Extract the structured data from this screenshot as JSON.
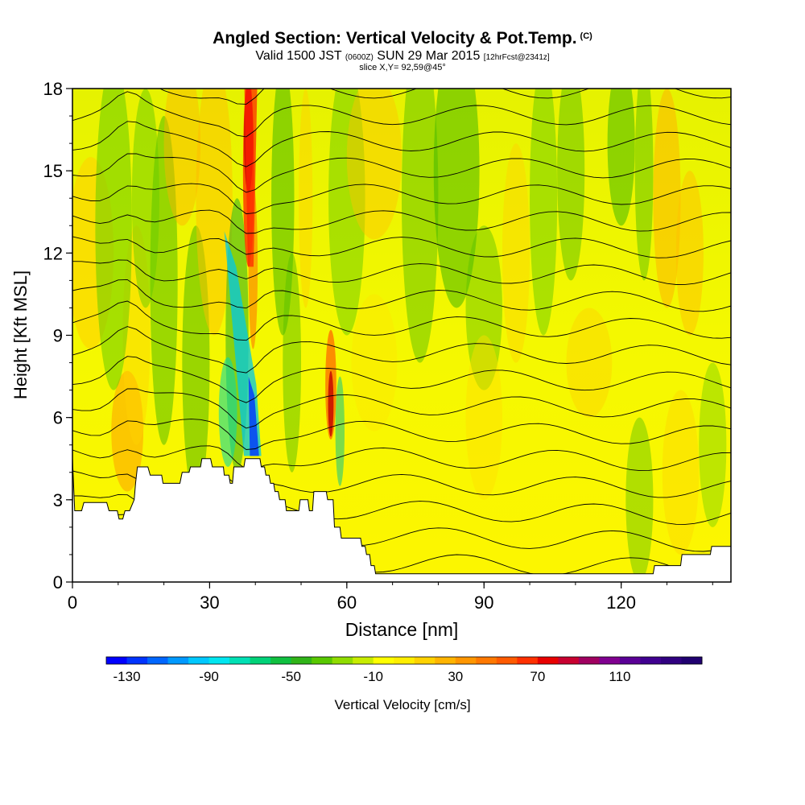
{
  "header": {
    "title": "Angled Section: Vertical Velocity & Pot.Temp.",
    "title_unit": "(C)",
    "valid_prefix": "Valid 1500 JST",
    "valid_z": "(0600Z)",
    "valid_date": "SUN 29 Mar 2015",
    "valid_fcst": "[12hrFcst@2341z]",
    "slice": "slice X,Y= 92,59@45°"
  },
  "chart_data": {
    "type": "heatmap",
    "xlabel": "Distance [nm]",
    "ylabel": "Height [Kft MSL]",
    "xlim": [
      0,
      144
    ],
    "ylim": [
      0,
      18
    ],
    "x_ticks": [
      "0",
      "30",
      "60",
      "90",
      "120"
    ],
    "x_tick_values": [
      0,
      30,
      60,
      90,
      120
    ],
    "y_ticks": [
      "0",
      "3",
      "6",
      "9",
      "12",
      "15",
      "18"
    ],
    "y_tick_values": [
      0,
      3,
      6,
      9,
      12,
      15,
      18
    ],
    "colorbar": {
      "label": "Vertical Velocity [cm/s]",
      "tick_labels": [
        "-130",
        "-90",
        "-50",
        "-10",
        "30",
        "70",
        "110"
      ],
      "min": -140,
      "max": 150,
      "step": 10,
      "colors": [
        "#0000ff",
        "#0033ff",
        "#0066ff",
        "#0099ff",
        "#00c8ff",
        "#00e6f0",
        "#00e0b4",
        "#00d278",
        "#10c040",
        "#30b418",
        "#58c800",
        "#90dc00",
        "#c8ec00",
        "#ffff00",
        "#ffee00",
        "#ffd200",
        "#ffb400",
        "#ff9600",
        "#ff7800",
        "#ff5a00",
        "#ff3000",
        "#e80000",
        "#c80030",
        "#a00060",
        "#800090",
        "#5a0096",
        "#400090",
        "#300080",
        "#200070"
      ]
    },
    "terrain_kft": [
      [
        0,
        4.5
      ],
      [
        0.5,
        2.6
      ],
      [
        2,
        2.6
      ],
      [
        2.5,
        2.9
      ],
      [
        7.5,
        2.9
      ],
      [
        8,
        2.6
      ],
      [
        9.8,
        2.6
      ],
      [
        10.2,
        2.3
      ],
      [
        11,
        2.3
      ],
      [
        11.5,
        2.6
      ],
      [
        12.5,
        2.6
      ],
      [
        13.5,
        3.0
      ],
      [
        13.8,
        3.6
      ],
      [
        14.2,
        4.2
      ],
      [
        16.5,
        4.2
      ],
      [
        17,
        3.9
      ],
      [
        19.5,
        3.9
      ],
      [
        19.8,
        3.6
      ],
      [
        23.5,
        3.6
      ],
      [
        24,
        4.0
      ],
      [
        25.5,
        4.0
      ],
      [
        25.8,
        4.2
      ],
      [
        28,
        4.2
      ],
      [
        28.3,
        4.5
      ],
      [
        30.2,
        4.5
      ],
      [
        30.6,
        4.2
      ],
      [
        33,
        4.2
      ],
      [
        33.2,
        3.9
      ],
      [
        34.2,
        3.9
      ],
      [
        34.5,
        3.6
      ],
      [
        35,
        3.6
      ],
      [
        35.3,
        4.2
      ],
      [
        37.5,
        4.2
      ],
      [
        37.8,
        4.5
      ],
      [
        41,
        4.5
      ],
      [
        41.3,
        4.2
      ],
      [
        42,
        4.2
      ],
      [
        42.3,
        3.9
      ],
      [
        43,
        3.9
      ],
      [
        43.3,
        3.6
      ],
      [
        44,
        3.6
      ],
      [
        44.3,
        3.3
      ],
      [
        45,
        3.3
      ],
      [
        45.3,
        3.0
      ],
      [
        46.5,
        3.0
      ],
      [
        46.8,
        2.6
      ],
      [
        49.5,
        2.6
      ],
      [
        49.8,
        3.0
      ],
      [
        51.5,
        3.0
      ],
      [
        51.8,
        2.6
      ],
      [
        52.5,
        2.6
      ],
      [
        52.8,
        3.3
      ],
      [
        55.5,
        3.3
      ],
      [
        55.8,
        3.0
      ],
      [
        57,
        3.0
      ],
      [
        57.3,
        2.0
      ],
      [
        58.5,
        2.0
      ],
      [
        58.8,
        1.6
      ],
      [
        63,
        1.6
      ],
      [
        63.3,
        1.3
      ],
      [
        64,
        1.3
      ],
      [
        64.3,
        1.0
      ],
      [
        65,
        1.0
      ],
      [
        65.3,
        0.6
      ],
      [
        66,
        0.6
      ],
      [
        66.3,
        0.3
      ],
      [
        127,
        0.3
      ],
      [
        127.3,
        0.6
      ],
      [
        133,
        0.6
      ],
      [
        133.3,
        1.0
      ],
      [
        139.5,
        1.0
      ],
      [
        139.8,
        1.3
      ],
      [
        144,
        1.3
      ]
    ],
    "fields": [
      "vertical_velocity_cm_s",
      "potential_temperature_C"
    ]
  }
}
